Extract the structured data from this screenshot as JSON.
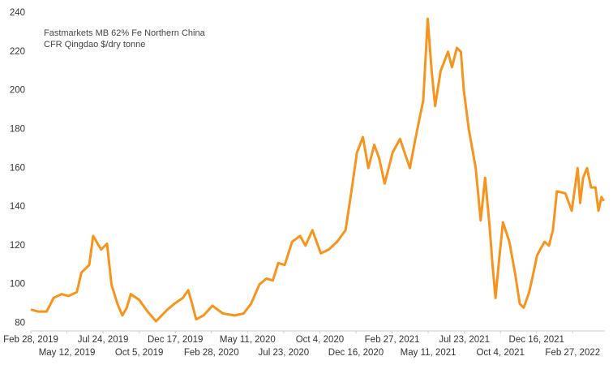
{
  "chart_data": {
    "type": "line",
    "title": "Fastmarkets MB 62% Fe Northern China",
    "subtitle": "CFR Qingdao $/dry tonne",
    "x": [
      "2019-02-28",
      "2019-03-15",
      "2019-04-01",
      "2019-04-15",
      "2019-05-01",
      "2019-05-15",
      "2019-06-01",
      "2019-06-10",
      "2019-06-26",
      "2019-07-04",
      "2019-07-20",
      "2019-08-01",
      "2019-08-10",
      "2019-08-22",
      "2019-09-01",
      "2019-09-10",
      "2019-09-18",
      "2019-10-05",
      "2019-10-22",
      "2019-11-08",
      "2019-12-01",
      "2019-12-15",
      "2020-01-01",
      "2020-01-12",
      "2020-01-20",
      "2020-01-28",
      "2020-02-12",
      "2020-03-01",
      "2020-03-22",
      "2020-04-15",
      "2020-05-03",
      "2020-05-18",
      "2020-06-04",
      "2020-06-18",
      "2020-07-01",
      "2020-07-12",
      "2020-07-25",
      "2020-08-09",
      "2020-08-25",
      "2020-09-05",
      "2020-09-19",
      "2020-10-06",
      "2020-10-22",
      "2020-11-08",
      "2020-11-25",
      "2020-12-08",
      "2020-12-18",
      "2020-12-30",
      "2021-01-10",
      "2021-01-22",
      "2021-02-01",
      "2021-02-12",
      "2021-02-28",
      "2021-03-15",
      "2021-04-04",
      "2021-04-15",
      "2021-05-01",
      "2021-05-10",
      "2021-05-18",
      "2021-05-25",
      "2021-06-05",
      "2021-06-20",
      "2021-06-28",
      "2021-07-08",
      "2021-07-16",
      "2021-07-22",
      "2021-08-01",
      "2021-08-15",
      "2021-08-25",
      "2021-09-03",
      "2021-09-12",
      "2021-09-18",
      "2021-09-24",
      "2021-10-01",
      "2021-10-09",
      "2021-10-22",
      "2021-11-03",
      "2021-11-12",
      "2021-11-20",
      "2021-12-01",
      "2021-12-08",
      "2021-12-17",
      "2022-01-01",
      "2022-01-10",
      "2022-01-18",
      "2022-01-26",
      "2022-02-12",
      "2022-02-25",
      "2022-03-09",
      "2022-03-14",
      "2022-03-20",
      "2022-03-28",
      "2022-04-05",
      "2022-04-14",
      "2022-04-20",
      "2022-04-26",
      "2022-05-01"
    ],
    "series": [
      {
        "name": "Fastmarkets MB 62% Fe",
        "color": "#f7941d",
        "values": [
          87,
          86,
          86,
          93,
          95,
          94,
          96,
          106,
          110,
          125,
          118,
          121,
          100,
          90,
          84,
          88,
          95,
          92,
          86,
          81,
          87,
          90,
          93,
          97,
          90,
          82,
          84,
          89,
          85,
          84,
          85,
          90,
          100,
          103,
          102,
          111,
          110,
          122,
          125,
          120,
          128,
          116,
          118,
          122,
          128,
          150,
          168,
          176,
          160,
          172,
          165,
          152,
          168,
          175,
          160,
          175,
          195,
          237,
          210,
          192,
          210,
          220,
          212,
          222,
          220,
          200,
          180,
          160,
          133,
          155,
          130,
          110,
          93,
          112,
          132,
          122,
          105,
          90,
          88,
          96,
          104,
          115,
          122,
          120,
          128,
          148,
          147,
          138,
          160,
          142,
          155,
          160,
          150,
          150,
          138,
          145,
          143
        ]
      }
    ],
    "xlim": [
      "2019-02-28",
      "2022-05-03"
    ],
    "xticks": [
      {
        "value": "2019-02-28",
        "label": "Feb 28, 2019"
      },
      {
        "value": "2019-05-12",
        "label": "May 12, 2019"
      },
      {
        "value": "2019-07-24",
        "label": "Jul 24, 2019"
      },
      {
        "value": "2019-10-05",
        "label": "Oct 5, 2019"
      },
      {
        "value": "2019-12-17",
        "label": "Dec 17, 2019"
      },
      {
        "value": "2020-02-28",
        "label": "Feb 28, 2020"
      },
      {
        "value": "2020-05-11",
        "label": "May 11, 2020"
      },
      {
        "value": "2020-07-23",
        "label": "Jul 23, 2020"
      },
      {
        "value": "2020-10-04",
        "label": "Oct 4, 2020"
      },
      {
        "value": "2020-12-16",
        "label": "Dec 16, 2020"
      },
      {
        "value": "2021-02-27",
        "label": "Feb 27, 2021"
      },
      {
        "value": "2021-05-11",
        "label": "May 11, 2021"
      },
      {
        "value": "2021-07-23",
        "label": "Jul 23, 2021"
      },
      {
        "value": "2021-10-04",
        "label": "Oct 4, 2021"
      },
      {
        "value": "2021-12-16",
        "label": "Dec 16, 2021"
      },
      {
        "value": "2022-02-27",
        "label": "Feb 27, 2022"
      }
    ],
    "ylim": [
      76,
      240
    ],
    "yticks": [
      80,
      100,
      120,
      140,
      160,
      180,
      200,
      220,
      240
    ],
    "grid": false
  }
}
